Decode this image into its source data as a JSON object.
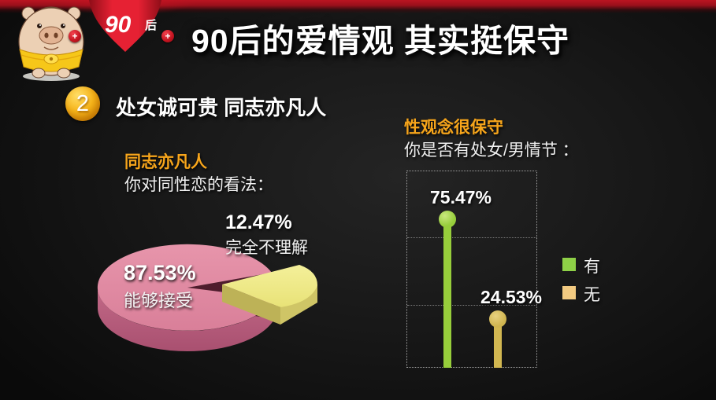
{
  "header": {
    "badge": {
      "main": "90",
      "suffix": "后"
    },
    "plus": "+",
    "title": "90后的爱情观 其实挺保守"
  },
  "section": {
    "number": "2",
    "heading": "处女诚可贵 同志亦凡人"
  },
  "pie_block": {
    "title": "同志亦凡人",
    "subtitle": "你对同性恋的看法：",
    "slice1_pct": "87.53%",
    "slice1_label": "能够接受",
    "slice2_pct": "12.47%",
    "slice2_label": "完全不理解"
  },
  "lollipop_block": {
    "title": "性观念很保守",
    "subtitle": "你是否有处女/男情节 ：",
    "bar1_label": "75.47%",
    "bar2_label": "24.53%",
    "legend": [
      {
        "label": "有",
        "color": "#8ed047"
      },
      {
        "label": "无",
        "color": "#f2ca81"
      }
    ]
  },
  "chart_data": [
    {
      "type": "pie",
      "title": "同志亦凡人",
      "subtitle": "你对同性恋的看法：",
      "slices": [
        {
          "label": "能够接受",
          "value": 87.53,
          "color": "#e08ba3",
          "exploded": false
        },
        {
          "label": "完全不理解",
          "value": 12.47,
          "color": "#efea85",
          "exploded": true
        }
      ],
      "style": "3d-exploded"
    },
    {
      "type": "bar",
      "variant": "lollipop",
      "title": "性观念很保守",
      "subtitle": "你是否有处女/男情节 ：",
      "categories": [
        "有",
        "无"
      ],
      "values": [
        75.47,
        24.53
      ],
      "value_labels": [
        "75.47%",
        "24.53%"
      ],
      "colors": [
        "#97ce3b",
        "#d2b751"
      ],
      "ylim": [
        0,
        100
      ],
      "gridlines": true,
      "legend_position": "right"
    }
  ],
  "colors": {
    "background": "#141414",
    "banner_red": "#c2131f",
    "accent_orange": "#f7a51b",
    "section_circle": "#f7b519",
    "title_white": "#ffffff",
    "pie_pink": "#e08ba3",
    "pie_pink_side": "#c06a88",
    "pie_yellow": "#efea85",
    "lollipop_green": "#97ce3b",
    "lollipop_gold": "#d2b751",
    "legend_green": "#8ed047",
    "legend_tan": "#f2ca81"
  }
}
